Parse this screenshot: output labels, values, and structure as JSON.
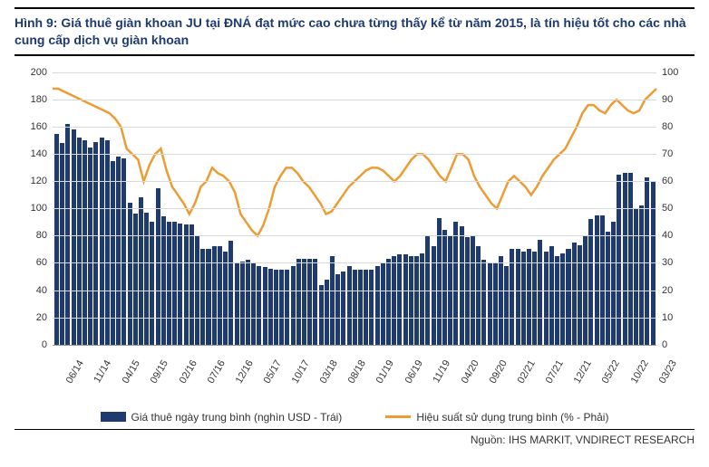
{
  "title": "Hình 9: Giá thuê giàn khoan JU tại ĐNÁ đạt mức cao chưa từng thấy kể từ năm 2015, là tín hiệu tốt cho các nhà cung cấp dịch vụ giàn khoan",
  "source": "Nguồn: IHS MARKIT, VNDIRECT RESEARCH",
  "legend": {
    "bar_label": "Giá thuê ngày trung bình (nghìn USD - Trái)",
    "line_label": "Hiệu suất sử dụng trung bình (% - Phải)"
  },
  "chart": {
    "type": "combo-bar-line",
    "background_color": "#ffffff",
    "grid_color": "#d9d9d9",
    "bar_color": "#1f3a6e",
    "line_color": "#ed9b33",
    "line_width": 2.5,
    "title_fontsize": 14,
    "label_fontsize": 11,
    "left_axis": {
      "min": 0,
      "max": 200,
      "step": 20
    },
    "right_axis": {
      "min": 0,
      "max": 100,
      "step": 10
    },
    "x_ticks": [
      "06/14",
      "11/14",
      "04/15",
      "09/15",
      "02/16",
      "07/16",
      "12/16",
      "05/17",
      "10/17",
      "03/18",
      "08/18",
      "01/19",
      "06/19",
      "11/19",
      "04/20",
      "09/20",
      "02/21",
      "07/21",
      "12/21",
      "05/22",
      "10/22",
      "03/23"
    ],
    "x_tick_interval": 5,
    "bar_values": [
      155,
      148,
      162,
      158,
      152,
      150,
      145,
      149,
      152,
      150,
      135,
      138,
      137,
      104,
      96,
      108,
      97,
      90,
      115,
      94,
      90,
      90,
      89,
      88,
      88,
      80,
      70,
      70,
      72,
      72,
      68,
      76,
      60,
      61,
      62,
      60,
      58,
      57,
      56,
      55,
      55,
      55,
      58,
      63,
      63,
      63,
      63,
      44,
      48,
      65,
      52,
      54,
      58,
      55,
      55,
      55,
      55,
      58,
      60,
      63,
      65,
      66,
      66,
      65,
      65,
      67,
      80,
      72,
      93,
      84,
      80,
      90,
      87,
      79,
      80,
      72,
      62,
      60,
      60,
      65,
      58,
      70,
      70,
      68,
      70,
      68,
      77,
      68,
      72,
      65,
      67,
      70,
      75,
      73,
      80,
      92,
      95,
      95,
      83,
      90,
      125,
      126,
      126,
      100,
      102,
      123,
      120
    ],
    "line_values": [
      94,
      94,
      93,
      92,
      91,
      90,
      89,
      88,
      87,
      86,
      85,
      83,
      80,
      72,
      70,
      68,
      60,
      66,
      70,
      72,
      64,
      58,
      55,
      52,
      48,
      52,
      58,
      60,
      65,
      63,
      62,
      60,
      56,
      48,
      45,
      42,
      40,
      44,
      50,
      58,
      62,
      65,
      65,
      63,
      60,
      58,
      55,
      52,
      48,
      49,
      52,
      55,
      58,
      60,
      62,
      64,
      65,
      65,
      64,
      62,
      60,
      62,
      65,
      68,
      70,
      70,
      68,
      65,
      62,
      60,
      65,
      70,
      70,
      68,
      62,
      58,
      55,
      52,
      50,
      55,
      60,
      62,
      60,
      58,
      55,
      58,
      62,
      65,
      68,
      70,
      72,
      76,
      80,
      85,
      88,
      88,
      86,
      85,
      88,
      90,
      88,
      86,
      85,
      86,
      90,
      92,
      94
    ]
  }
}
